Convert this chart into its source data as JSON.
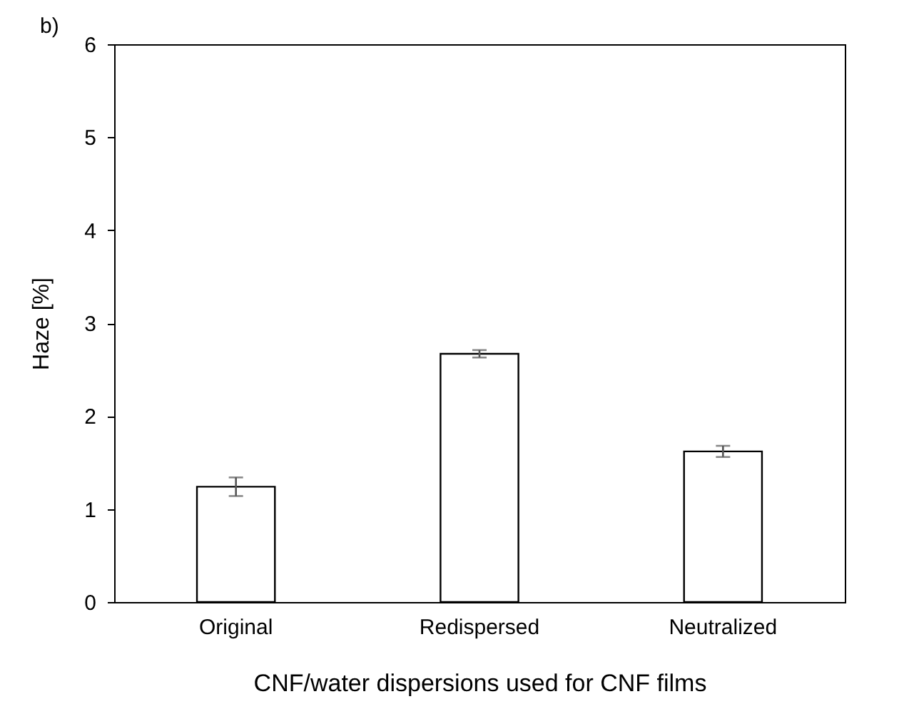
{
  "chart_data": {
    "type": "bar",
    "annotations": [
      "b)"
    ],
    "xlabel": "CNF/water dispersions used for CNF films",
    "ylabel": "Haze [%]",
    "categories": [
      "Original",
      "Redispersed",
      "Neutralized"
    ],
    "values": [
      1.24,
      2.67,
      1.62
    ],
    "errors": [
      0.1,
      0.04,
      0.06
    ],
    "color": "#ffffff",
    "ylim": [
      0,
      6
    ],
    "yticks": [
      0,
      1,
      2,
      3,
      4,
      5,
      6
    ],
    "grid": false
  }
}
